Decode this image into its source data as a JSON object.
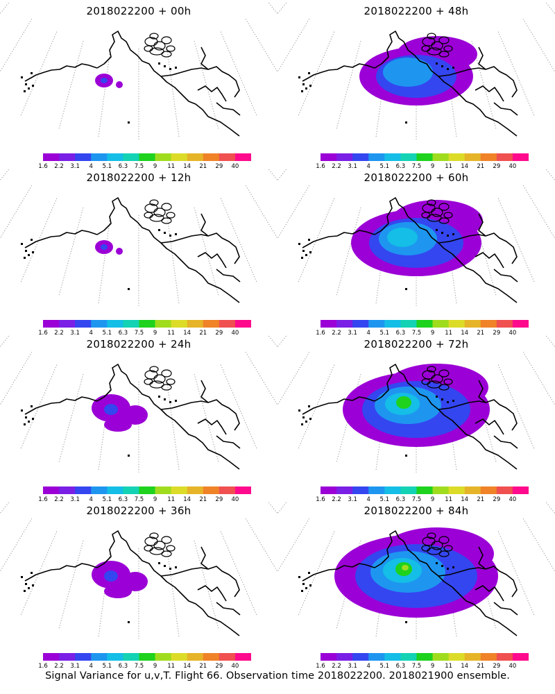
{
  "panels": [
    {
      "title": "2018022200 + 00h",
      "lead": "00h",
      "level": 0
    },
    {
      "title": "2018022200 + 48h",
      "lead": "48h",
      "level": 2
    },
    {
      "title": "2018022200 + 12h",
      "lead": "12h",
      "level": 0
    },
    {
      "title": "2018022200 + 60h",
      "lead": "60h",
      "level": 3
    },
    {
      "title": "2018022200 + 24h",
      "lead": "24h",
      "level": 1
    },
    {
      "title": "2018022200 + 72h",
      "lead": "72h",
      "level": 4
    },
    {
      "title": "2018022200 + 36h",
      "lead": "36h",
      "level": 1
    },
    {
      "title": "2018022200 + 84h",
      "lead": "84h",
      "level": 5
    }
  ],
  "colorbar": {
    "labels": [
      "1.6",
      "2.2",
      "3.1",
      "4",
      "5.1",
      "6.3",
      "7.5",
      "9",
      "11",
      "14",
      "21",
      "29",
      "40"
    ],
    "colors": [
      "#9b00d6",
      "#7a1fe6",
      "#3446f0",
      "#1e96f0",
      "#14bee6",
      "#14d2b4",
      "#1ed21e",
      "#a0dc1e",
      "#dcdc28",
      "#e6b428",
      "#f08228",
      "#f05050",
      "#ff0a8c"
    ]
  },
  "caption": "Signal Variance for u,v,T. Flight 66. Observation time 2018022200. 2018021900 ensemble."
}
